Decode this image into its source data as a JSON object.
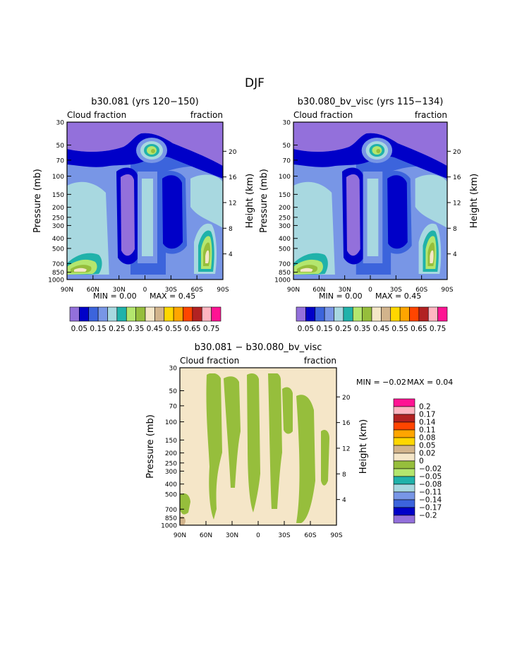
{
  "figure_title": "DJF",
  "chart_data": [
    {
      "type": "heatmap",
      "title": "b30.081 (yrs 120−150)",
      "left_label": "Cloud fraction",
      "right_label": "fraction",
      "ylabel": "Pressure (mb)",
      "y2label": "Height (km)",
      "x_ticks": [
        "90N",
        "60N",
        "30N",
        "0",
        "30S",
        "60S",
        "90S"
      ],
      "x_values": [
        90,
        60,
        30,
        0,
        -30,
        -60,
        -90
      ],
      "y_ticks": [
        "30",
        "50",
        "70",
        "100",
        "150",
        "200",
        "250",
        "300",
        "400",
        "500",
        "700",
        "850",
        "1000"
      ],
      "y_values": [
        30,
        50,
        70,
        100,
        150,
        200,
        250,
        300,
        400,
        500,
        700,
        850,
        1000
      ],
      "y2_ticks": [
        "20",
        "16",
        "12",
        "8",
        "4"
      ],
      "ylim": [
        30,
        1000
      ],
      "xlim": [
        90,
        -90
      ],
      "y_scale": "log",
      "min_text": "MIN =    0.00",
      "max_text": "MAX =    0.45",
      "min": 0.0,
      "max": 0.45
    },
    {
      "type": "heatmap",
      "title": "b30.080_bv_visc (yrs 115−134)",
      "left_label": "Cloud fraction",
      "right_label": "fraction",
      "ylabel": "Pressure (mb)",
      "y2label": "Height (km)",
      "x_ticks": [
        "90N",
        "60N",
        "30N",
        "0",
        "30S",
        "60S",
        "90S"
      ],
      "x_values": [
        90,
        60,
        30,
        0,
        -30,
        -60,
        -90
      ],
      "y_ticks": [
        "30",
        "50",
        "70",
        "100",
        "150",
        "200",
        "250",
        "300",
        "400",
        "500",
        "700",
        "850",
        "1000"
      ],
      "y_values": [
        30,
        50,
        70,
        100,
        150,
        200,
        250,
        300,
        400,
        500,
        700,
        850,
        1000
      ],
      "y2_ticks": [
        "20",
        "16",
        "12",
        "8",
        "4"
      ],
      "ylim": [
        30,
        1000
      ],
      "xlim": [
        90,
        -90
      ],
      "y_scale": "log",
      "min_text": "MIN =    0.00",
      "max_text": "MAX =    0.45",
      "min": 0.0,
      "max": 0.45
    },
    {
      "type": "heatmap",
      "title": "b30.081 − b30.080_bv_visc",
      "left_label": "Cloud fraction",
      "right_label": "fraction",
      "ylabel": "Pressure (mb)",
      "y2label": "Height (km)",
      "x_ticks": [
        "90N",
        "60N",
        "30N",
        "0",
        "30S",
        "60S",
        "90S"
      ],
      "x_values": [
        90,
        60,
        30,
        0,
        -30,
        -60,
        -90
      ],
      "y_ticks": [
        "30",
        "50",
        "70",
        "100",
        "150",
        "200",
        "250",
        "300",
        "400",
        "500",
        "700",
        "850",
        "1000"
      ],
      "y_values": [
        30,
        50,
        70,
        100,
        150,
        200,
        250,
        300,
        400,
        500,
        700,
        850,
        1000
      ],
      "y2_ticks": [
        "20",
        "16",
        "12",
        "8",
        "4"
      ],
      "ylim": [
        30,
        1000
      ],
      "xlim": [
        90,
        -90
      ],
      "y_scale": "log",
      "min_text": "MIN =    −0.02",
      "max_text": "MAX =    0.04",
      "min": -0.02,
      "max": 0.04
    }
  ],
  "colorbar_top": {
    "labels": [
      "0.05",
      "0.15",
      "0.25",
      "0.35",
      "0.45",
      "0.55",
      "0.65",
      "0.75"
    ],
    "colors": [
      "#9370db",
      "#0000c8",
      "#3c64dc",
      "#7896e6",
      "#a8d8e0",
      "#20b2aa",
      "#b4e66e",
      "#96be3c",
      "#f5e6c8",
      "#d2b48c",
      "#ffd700",
      "#ffa500",
      "#ff4500",
      "#b22222",
      "#ffb6c1",
      "#ff1493"
    ]
  },
  "colorbar_diff": {
    "labels": [
      "0.2",
      "0.17",
      "0.14",
      "0.11",
      "0.08",
      "0.05",
      "0.02",
      "0",
      "−0.02",
      "−0.05",
      "−0.08",
      "−0.11",
      "−0.14",
      "−0.17",
      "−0.2"
    ],
    "colors": [
      "#ff1493",
      "#ffb6c1",
      "#b22222",
      "#ff4500",
      "#ffa500",
      "#ffd700",
      "#d2b48c",
      "#f5e6c8",
      "#96be3c",
      "#b4e66e",
      "#20b2aa",
      "#a8d8e0",
      "#7896e6",
      "#3c64dc",
      "#0000c8",
      "#9370db"
    ]
  }
}
